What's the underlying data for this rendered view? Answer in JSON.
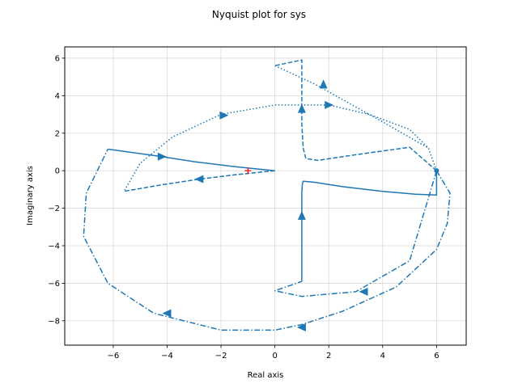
{
  "chart_data": {
    "type": "line",
    "title": "Nyquist plot for sys",
    "xlabel": "Real axis",
    "ylabel": "Imaginary axis",
    "xlim": [
      -7.8,
      7.1
    ],
    "ylim": [
      -9.3,
      6.6
    ],
    "x_ticks": [
      -6,
      -4,
      -2,
      0,
      2,
      4,
      6
    ],
    "x_tick_labels": [
      "−6",
      "−4",
      "−2",
      "0",
      "2",
      "4",
      "6"
    ],
    "y_ticks": [
      -8,
      -6,
      -4,
      -2,
      0,
      2,
      4,
      6
    ],
    "y_tick_labels": [
      "−8",
      "−6",
      "−4",
      "−2",
      "0",
      "2",
      "4",
      "6"
    ],
    "grid": true,
    "series_color": "#1f77b4",
    "critical_point": {
      "x": -1,
      "y": 0,
      "marker": "+",
      "color": "#ff0000"
    },
    "start_point": {
      "x": 6,
      "y": 0
    },
    "series": [
      {
        "style": "solid",
        "x": [
          6.0,
          6.0,
          5.2,
          4.0,
          2.5,
          1.5,
          1.05,
          1.02,
          1.0,
          1.0,
          1.0
        ],
        "y": [
          0.0,
          -1.3,
          -1.25,
          -1.1,
          -0.85,
          -0.62,
          -0.56,
          -0.7,
          -1.2,
          -3.0,
          -5.9
        ],
        "arrows": [
          {
            "x": 1.0,
            "y": -2.4,
            "dir": "up"
          }
        ]
      },
      {
        "style": "solid",
        "x": [
          0.0,
          -1.5,
          -3.0,
          -4.2,
          -5.2,
          -6.2
        ],
        "y": [
          0.0,
          0.22,
          0.48,
          0.75,
          0.95,
          1.15
        ],
        "arrows": [
          {
            "x": -4.2,
            "y": 0.75,
            "dir": "right"
          }
        ]
      },
      {
        "style": "dashed",
        "x": [
          6.0,
          5.0,
          3.0,
          1.6,
          1.15,
          1.05,
          1.0,
          1.0,
          1.0,
          0.0
        ],
        "y": [
          0.0,
          1.25,
          0.85,
          0.55,
          0.65,
          1.2,
          2.5,
          4.5,
          5.9,
          5.6
        ],
        "arrows": [
          {
            "x": 1.0,
            "y": 3.3,
            "dir": "up"
          }
        ]
      },
      {
        "style": "dashed",
        "x": [
          0.0,
          -1.5,
          -2.8,
          -4.2,
          -5.6
        ],
        "y": [
          0.0,
          -0.22,
          -0.45,
          -0.75,
          -1.1
        ],
        "arrows": [
          {
            "x": -2.8,
            "y": -0.45,
            "dir": "left"
          }
        ]
      },
      {
        "style": "dotted",
        "x": [
          6.0,
          5.7,
          5.0,
          3.5,
          2.0,
          0.0,
          -2.0,
          -3.8,
          -5.0,
          -5.6
        ],
        "y": [
          0.0,
          1.2,
          2.2,
          3.0,
          3.5,
          3.5,
          3.0,
          1.8,
          0.4,
          -1.1
        ],
        "arrows": [
          {
            "x": 2.0,
            "y": 3.5,
            "dir": "right"
          },
          {
            "x": -1.9,
            "y": 2.95,
            "dir": "right"
          }
        ]
      },
      {
        "style": "dotted",
        "x": [
          0.0,
          1.5,
          4.0,
          5.7
        ],
        "y": [
          5.6,
          4.6,
          2.6,
          1.2
        ],
        "arrows": [
          {
            "x": 1.8,
            "y": 4.6,
            "dir": "up"
          }
        ]
      },
      {
        "style": "dashdot",
        "x": [
          6.0,
          6.5,
          6.4,
          6.0,
          4.5,
          2.5,
          1.0,
          0.0,
          -2.0,
          -4.5,
          -6.2,
          -7.1,
          -7.0,
          -6.2
        ],
        "y": [
          0.0,
          -1.2,
          -2.8,
          -4.2,
          -6.2,
          -7.5,
          -8.2,
          -8.5,
          -8.5,
          -7.6,
          -6.0,
          -3.5,
          -1.2,
          1.15
        ],
        "arrows": [
          {
            "x": 1.0,
            "y": -8.35,
            "dir": "left"
          },
          {
            "x": -4.0,
            "y": -7.6,
            "dir": "left"
          }
        ]
      },
      {
        "style": "dashdot",
        "x": [
          6.0,
          5.0,
          3.0,
          1.0,
          0.0,
          1.0
        ],
        "y": [
          0.0,
          -4.8,
          -6.45,
          -6.7,
          -6.4,
          -5.9
        ],
        "arrows": [
          {
            "x": 3.3,
            "y": -6.45,
            "dir": "left"
          }
        ]
      }
    ]
  }
}
